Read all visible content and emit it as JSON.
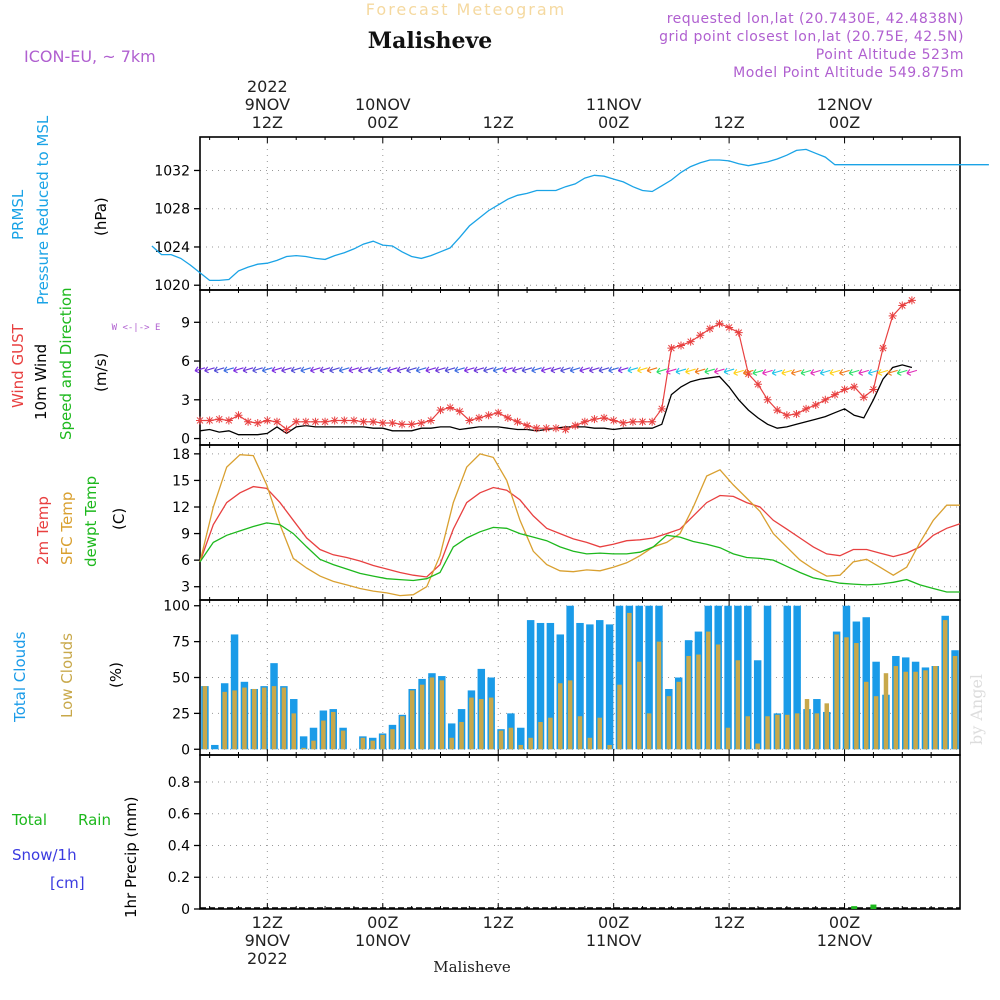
{
  "header": {
    "product": "Forecast Meteogram",
    "station": "Malisheve",
    "model": "ICON-EU, ~ 7km",
    "requested": "requested lon,lat (20.7430E, 42.4838N)",
    "gridpoint": "grid point closest lon,lat (20.75E, 42.5N)",
    "point_alt": "Point Altitude 523m",
    "model_alt": "Model Point Altitude 549.875m",
    "watermark": "by Angel",
    "footer_station": "Malisheve"
  },
  "time_axis": {
    "top": [
      {
        "h": 12,
        "l1": "2022",
        "l2": "9NOV",
        "l3": "12Z"
      },
      {
        "h": 24,
        "l1": "",
        "l2": "10NOV",
        "l3": "00Z"
      },
      {
        "h": 36,
        "l1": "",
        "l2": "",
        "l3": "12Z"
      },
      {
        "h": 48,
        "l1": "",
        "l2": "11NOV",
        "l3": "00Z"
      },
      {
        "h": 60,
        "l1": "",
        "l2": "",
        "l3": "12Z"
      },
      {
        "h": 72,
        "l1": "",
        "l2": "12NOV",
        "l3": "00Z"
      }
    ],
    "bottom": [
      {
        "h": 12,
        "l1": "12Z",
        "l2": "9NOV",
        "l3": "2022"
      },
      {
        "h": 24,
        "l1": "00Z",
        "l2": "10NOV",
        "l3": ""
      },
      {
        "h": 36,
        "l1": "12Z",
        "l2": "",
        "l3": ""
      },
      {
        "h": 48,
        "l1": "00Z",
        "l2": "11NOV",
        "l3": ""
      },
      {
        "h": 60,
        "l1": "12Z",
        "l2": "",
        "l3": ""
      },
      {
        "h": 72,
        "l1": "00Z",
        "l2": "12NOV",
        "l3": ""
      }
    ]
  },
  "colors": {
    "pressure": "#1aa3e6",
    "gust": "#e84040",
    "wind": "#000000",
    "wind_label": "#1db81d",
    "arrows": "#7a2be0",
    "temp2m": "#e84040",
    "sfc": "#d9a030",
    "dewpt": "#1db81d",
    "total_clouds": "#1a9be8",
    "low_clouds": "#c8a84a",
    "rain": "#1db81d",
    "snow": "#3a3ae0",
    "purple_text": "#b060d0"
  },
  "chart_data": [
    {
      "type": "line",
      "id": "pressure",
      "ylabel_lines": [
        "PRMSL",
        "Pressure Reduced to MSL"
      ],
      "unit": "(hPa)",
      "yticks": [
        1020,
        1024,
        1028,
        1032
      ],
      "ylim": [
        1019.5,
        1035.5
      ],
      "series": [
        {
          "key": "pressure",
          "x": [
            0,
            1,
            2,
            3,
            4,
            5,
            6,
            7,
            8,
            9,
            10,
            11,
            12,
            13,
            14,
            15,
            16,
            17,
            18,
            19,
            20,
            21,
            22,
            23,
            24,
            25,
            26,
            27,
            28,
            29,
            30,
            31,
            32,
            33,
            34,
            35,
            36,
            37,
            38,
            39,
            40,
            41,
            42,
            43,
            44,
            45,
            46,
            47,
            48,
            49,
            50,
            51,
            52,
            53,
            54,
            55,
            56,
            57,
            58,
            59,
            60,
            61,
            62,
            63,
            64,
            65,
            66,
            67,
            68,
            69,
            70,
            71,
            72,
            73,
            74,
            75,
            76,
            77,
            78,
            79,
            80,
            81,
            82,
            83,
            84,
            85,
            86,
            87
          ],
          "values": [
            1024.1,
            1023.2,
            1023.2,
            1022.8,
            1022.1,
            1021.3,
            1020.5,
            1020.5,
            1020.6,
            1021.5,
            1021.9,
            1022.2,
            1022.3,
            1022.6,
            1023.0,
            1023.1,
            1023.0,
            1022.8,
            1022.7,
            1023.1,
            1023.4,
            1023.8,
            1024.3,
            1024.6,
            1024.2,
            1024.1,
            1023.5,
            1023.0,
            1022.8,
            1023.1,
            1023.5,
            1023.9,
            1025.0,
            1026.2,
            1027.0,
            1027.8,
            1028.4,
            1029.0,
            1029.4,
            1029.6,
            1029.9,
            1029.9,
            1029.9,
            1030.3,
            1030.6,
            1031.2,
            1031.5,
            1031.4,
            1031.1,
            1030.8,
            1030.3,
            1029.9,
            1029.8,
            1030.4,
            1031.0,
            1031.8,
            1032.4,
            1032.8,
            1033.1,
            1033.1,
            1033.0,
            1032.7,
            1032.5,
            1032.7,
            1032.9,
            1033.2,
            1033.6,
            1034.1,
            1034.2,
            1033.8,
            1033.4,
            1032.6,
            1032.6,
            1032.6,
            1032.6,
            1032.6,
            1032.6,
            1032.6,
            1032.6,
            1032.6,
            1032.6,
            1032.6,
            1032.6,
            1032.6,
            1032.6,
            1032.6,
            1032.6,
            1032.6
          ]
        }
      ]
    },
    {
      "type": "line",
      "id": "wind",
      "ylabel_lines": [
        "Wind GUST",
        "10m Wind",
        "Speed and Direction"
      ],
      "unit": "(m/s)",
      "compass": "W <-|-> E",
      "yticks": [
        0,
        3,
        6,
        9
      ],
      "ylim": [
        -0.5,
        11.5
      ],
      "series": [
        {
          "key": "gust",
          "name": "Wind GUST",
          "values": [
            1.4,
            1.4,
            1.5,
            1.4,
            1.8,
            1.3,
            1.2,
            1.4,
            1.3,
            0.7,
            1.3,
            1.3,
            1.3,
            1.3,
            1.4,
            1.4,
            1.4,
            1.3,
            1.3,
            1.2,
            1.2,
            1.1,
            1.1,
            1.2,
            1.4,
            2.2,
            2.4,
            2.1,
            1.4,
            1.6,
            1.8,
            2.0,
            1.6,
            1.3,
            1.0,
            0.8,
            0.8,
            0.8,
            0.7,
            1.0,
            1.3,
            1.5,
            1.6,
            1.4,
            1.2,
            1.3,
            1.3,
            1.3,
            2.3,
            7.0,
            7.2,
            7.5,
            8.0,
            8.5,
            8.9,
            8.6,
            8.2,
            5.0,
            4.2,
            3.0,
            2.2,
            1.8,
            1.9,
            2.3,
            2.6,
            3.0,
            3.4,
            3.8,
            4.0,
            3.2,
            3.8,
            7.0,
            9.5,
            10.3,
            10.7
          ]
        },
        {
          "key": "wind",
          "name": "10m Wind",
          "values": [
            0.6,
            0.7,
            0.5,
            0.6,
            0.3,
            0.3,
            0.3,
            0.4,
            0.9,
            0.4,
            0.9,
            1.0,
            0.9,
            0.9,
            0.9,
            0.9,
            0.9,
            0.9,
            0.8,
            0.8,
            0.6,
            0.6,
            0.6,
            0.8,
            0.8,
            0.9,
            0.9,
            0.7,
            0.8,
            0.9,
            0.9,
            0.9,
            0.8,
            0.7,
            0.7,
            0.6,
            0.7,
            0.8,
            0.9,
            0.9,
            0.9,
            0.8,
            0.8,
            0.7,
            0.8,
            0.8,
            0.8,
            0.8,
            1.1,
            3.4,
            4.0,
            4.4,
            4.6,
            4.7,
            4.8,
            4.0,
            3.0,
            2.2,
            1.6,
            1.1,
            0.8,
            0.9,
            1.1,
            1.3,
            1.5,
            1.7,
            2.0,
            2.3,
            1.8,
            1.6,
            3.0,
            4.6,
            5.5,
            5.7,
            5.5
          ]
        }
      ]
    },
    {
      "type": "line",
      "id": "temperature",
      "ylabel_lines": [
        "2m Temp",
        "SFC Temp",
        "dewpt Temp"
      ],
      "unit": "(C)",
      "yticks": [
        3,
        6,
        9,
        12,
        15,
        18
      ],
      "ylim": [
        1.5,
        19
      ],
      "series": [
        {
          "key": "temp2m",
          "name": "2m Temp",
          "values": [
            5.8,
            10.0,
            12.5,
            13.6,
            14.3,
            14.1,
            12.5,
            10.5,
            8.5,
            7.2,
            6.6,
            6.3,
            5.9,
            5.4,
            5.0,
            4.6,
            4.3,
            4.1,
            5.5,
            9.5,
            12.5,
            13.6,
            14.2,
            13.9,
            12.8,
            11.0,
            9.6,
            9.0,
            8.4,
            8.0,
            7.5,
            7.8,
            8.2,
            8.3,
            8.5,
            9.0,
            9.5,
            11.0,
            12.5,
            13.3,
            13.2,
            12.5,
            12.0,
            10.5,
            9.5,
            8.5,
            7.5,
            6.7,
            6.5,
            7.2,
            7.2,
            6.8,
            6.4,
            6.8,
            7.5,
            8.8,
            9.6,
            10.1
          ]
        },
        {
          "key": "sfc",
          "name": "SFC Temp",
          "values": [
            5.8,
            12.0,
            16.5,
            17.9,
            17.8,
            14.5,
            10.0,
            6.2,
            5.1,
            4.2,
            3.6,
            3.2,
            2.8,
            2.5,
            2.3,
            2.0,
            2.1,
            3.0,
            6.5,
            12.5,
            16.5,
            18.0,
            17.6,
            15.0,
            10.5,
            7.0,
            5.5,
            4.8,
            4.7,
            4.9,
            4.8,
            5.2,
            5.7,
            6.5,
            7.5,
            8.0,
            9.0,
            12.0,
            15.5,
            16.2,
            14.5,
            13.0,
            11.5,
            9.0,
            7.5,
            6.0,
            5.0,
            4.2,
            4.3,
            5.8,
            6.1,
            5.2,
            4.3,
            5.2,
            8.0,
            10.5,
            12.2,
            12.2
          ]
        },
        {
          "key": "dewpt",
          "name": "dewpt Temp",
          "values": [
            5.8,
            8.0,
            8.8,
            9.3,
            9.8,
            10.2,
            10.0,
            9.0,
            7.5,
            6.1,
            5.5,
            5.0,
            4.5,
            4.2,
            3.9,
            3.8,
            3.7,
            3.9,
            4.6,
            7.5,
            8.5,
            9.2,
            9.7,
            9.6,
            9.0,
            8.6,
            8.2,
            7.5,
            7.0,
            6.7,
            6.8,
            6.7,
            6.7,
            6.9,
            7.5,
            8.8,
            8.6,
            8.1,
            7.8,
            7.4,
            6.7,
            6.3,
            6.2,
            6.0,
            5.3,
            4.6,
            4.0,
            3.7,
            3.4,
            3.3,
            3.2,
            3.3,
            3.5,
            3.8,
            3.2,
            2.8,
            2.4,
            2.4
          ]
        }
      ]
    },
    {
      "type": "bar",
      "id": "clouds",
      "ylabel_lines": [
        "Total Clouds",
        "Low Clouds"
      ],
      "unit": "(%)",
      "yticks": [
        0,
        25,
        50,
        75,
        100
      ],
      "ylim": [
        -4,
        104
      ],
      "series": [
        {
          "key": "total_clouds",
          "name": "Total Clouds",
          "values": [
            44,
            3,
            46,
            80,
            47,
            42,
            44,
            60,
            44,
            35,
            9,
            15,
            27,
            28,
            15,
            0,
            9,
            8,
            11,
            17,
            24,
            42,
            49,
            53,
            51,
            18,
            28,
            41,
            56,
            50,
            14,
            25,
            15,
            90,
            88,
            88,
            80,
            100,
            88,
            87,
            90,
            87,
            100,
            100,
            100,
            100,
            100,
            42,
            50,
            76,
            82,
            100,
            100,
            100,
            100,
            100,
            62,
            100,
            25,
            100,
            100,
            28,
            35,
            26,
            82,
            100,
            89,
            92,
            61,
            38,
            65,
            64,
            61,
            57,
            58,
            93,
            69
          ]
        },
        {
          "key": "low_clouds",
          "name": "Low Clouds",
          "values": [
            44,
            0,
            40,
            41,
            43,
            42,
            43,
            44,
            43,
            25,
            1,
            6,
            20,
            26,
            13,
            0,
            8,
            6,
            10,
            14,
            23,
            41,
            45,
            50,
            48,
            8,
            19,
            36,
            35,
            36,
            13,
            15,
            3,
            8,
            19,
            22,
            46,
            48,
            23,
            8,
            22,
            3,
            45,
            95,
            61,
            25,
            75,
            37,
            47,
            65,
            66,
            82,
            73,
            15,
            62,
            23,
            4,
            23,
            24,
            24,
            25,
            35,
            25,
            32,
            80,
            78,
            74,
            47,
            37,
            53,
            58,
            54,
            54,
            55,
            58,
            90,
            65
          ]
        }
      ]
    },
    {
      "type": "bar",
      "id": "precip",
      "ylabel": "1hr Precip (mm)",
      "yticks": [
        0,
        0.2,
        0.4,
        0.6,
        0.8
      ],
      "yticklabels": [
        "0",
        "0.2",
        "0.4",
        "0.6",
        "0.8"
      ],
      "ylim": [
        0,
        0.97
      ],
      "legend": [
        "Total",
        "Rain",
        "Snow/1h",
        "[cm]"
      ],
      "series": [
        {
          "key": "rain",
          "name": "Total Rain",
          "x": [
            73,
            74,
            75
          ],
          "values": [
            0.018,
            0.0,
            0.028
          ]
        }
      ]
    }
  ]
}
